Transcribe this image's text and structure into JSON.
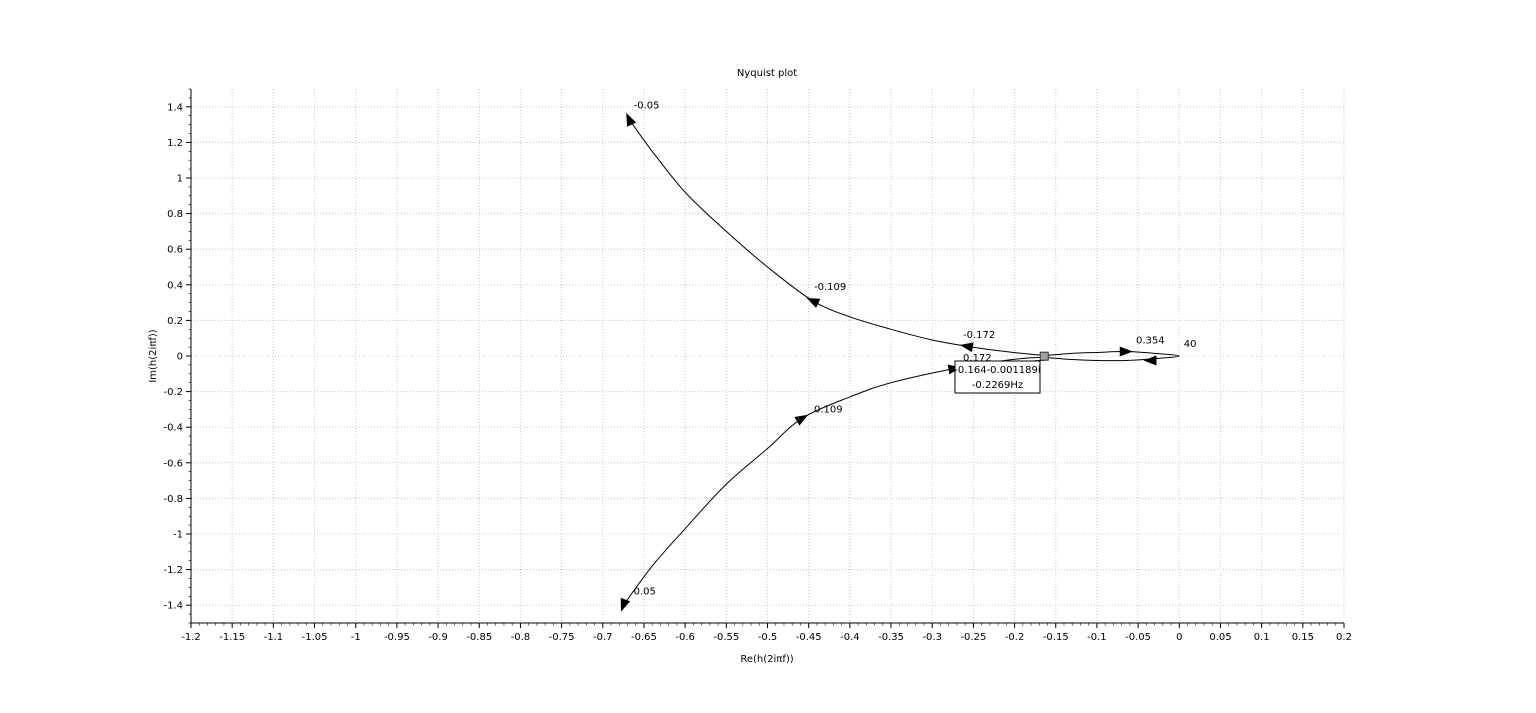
{
  "chart_data": {
    "type": "line",
    "title": "Nyquist plot",
    "xlabel": "Re(h(2iπf))",
    "ylabel": "Im(h(2iπf))",
    "xlim": [
      -1.2,
      0.2
    ],
    "ylim": [
      -1.5,
      1.5
    ],
    "grid": true,
    "xticks": [
      -1.2,
      -1.15,
      -1.1,
      -1.05,
      -1,
      -0.95,
      -0.9,
      -0.85,
      -0.8,
      -0.75,
      -0.7,
      -0.65,
      -0.6,
      -0.55,
      -0.5,
      -0.45,
      -0.4,
      -0.35,
      -0.3,
      -0.25,
      -0.2,
      -0.15,
      -0.1,
      -0.05,
      0,
      0.05,
      0.1,
      0.15,
      0.2
    ],
    "xtick_labels": [
      "-1.2",
      "-1.15",
      "-1.1",
      "-1.05",
      "-1",
      "-0.95",
      "-0.9",
      "-0.85",
      "-0.8",
      "-0.75",
      "-0.7",
      "-0.65",
      "-0.6",
      "-0.55",
      "-0.5",
      "-0.45",
      "-0.4",
      "-0.35",
      "-0.3",
      "-0.25",
      "-0.2",
      "-0.15",
      "-0.1",
      "-0.05",
      "0",
      "0.05",
      "0.1",
      "0.15",
      "0.2"
    ],
    "yticks": [
      -1.4,
      -1.2,
      -1,
      -0.8,
      -0.6,
      -0.4,
      -0.2,
      0,
      0.2,
      0.4,
      0.6,
      0.8,
      1,
      1.2,
      1.4
    ],
    "ytick_labels": [
      "-1.4",
      "-1.2",
      "-1",
      "-0.8",
      "-0.6",
      "-0.4",
      "-0.2",
      "0",
      "0.2",
      "0.4",
      "0.6",
      "0.8",
      "1",
      "1.2",
      "1.4"
    ],
    "series": [
      {
        "color": "#000000",
        "x": [
          -0.668,
          -0.64,
          -0.6,
          -0.55,
          -0.5,
          -0.445,
          -0.4,
          -0.35,
          -0.3,
          -0.258,
          -0.22,
          -0.18,
          -0.16,
          -0.13,
          -0.1,
          -0.065,
          -0.03,
          0,
          -0.03,
          -0.065,
          -0.1,
          -0.13,
          -0.16,
          -0.18,
          -0.22,
          -0.273,
          -0.35,
          -0.4,
          -0.458,
          -0.5,
          -0.55,
          -0.6,
          -0.64,
          -0.675
        ],
        "y": [
          1.33,
          1.15,
          0.92,
          0.7,
          0.5,
          0.31,
          0.22,
          0.15,
          0.09,
          0.055,
          0.03,
          0.01,
          0.005,
          0.015,
          0.02,
          0.025,
          0.015,
          0,
          -0.015,
          -0.025,
          -0.025,
          -0.02,
          -0.01,
          -0.01,
          -0.03,
          -0.07,
          -0.15,
          -0.23,
          -0.35,
          -0.52,
          -0.72,
          -0.97,
          -1.18,
          -1.4
        ]
      }
    ],
    "frequency_labels": [
      {
        "text": "-0.05",
        "x": -0.665,
        "y": 1.38
      },
      {
        "text": "-0.109",
        "x": -0.446,
        "y": 0.36
      },
      {
        "text": "-0.172",
        "x": -0.265,
        "y": 0.09
      },
      {
        "text": "0.354",
        "x": -0.055,
        "y": 0.06
      },
      {
        "text": "40",
        "x": 0.003,
        "y": 0.04
      },
      {
        "text": "0.172",
        "x": -0.265,
        "y": -0.04
      },
      {
        "text": "0.109",
        "x": -0.446,
        "y": -0.33
      },
      {
        "text": "0.05",
        "x": -0.665,
        "y": -1.35
      }
    ],
    "arrows": [
      {
        "x": -0.668,
        "y": 1.33,
        "dir": "up"
      },
      {
        "x": -0.445,
        "y": 0.31,
        "dir": "up"
      },
      {
        "x": -0.258,
        "y": 0.055,
        "dir": "up"
      },
      {
        "x": -0.065,
        "y": 0.025,
        "dir": "right"
      },
      {
        "x": -0.035,
        "y": -0.025,
        "dir": "left"
      },
      {
        "x": -0.273,
        "y": -0.07,
        "dir": "down"
      },
      {
        "x": -0.458,
        "y": -0.35,
        "dir": "down"
      },
      {
        "x": -0.675,
        "y": -1.4,
        "dir": "down"
      }
    ],
    "datatip": {
      "marker": {
        "x": -0.164,
        "y": -0.001189
      },
      "line1": "-0.164-0.001189i",
      "line2": "-0.2269Hz"
    }
  },
  "colors": {
    "curve": "#000000",
    "grid": "#c8c8c8",
    "marker": "#a0a0a0"
  }
}
